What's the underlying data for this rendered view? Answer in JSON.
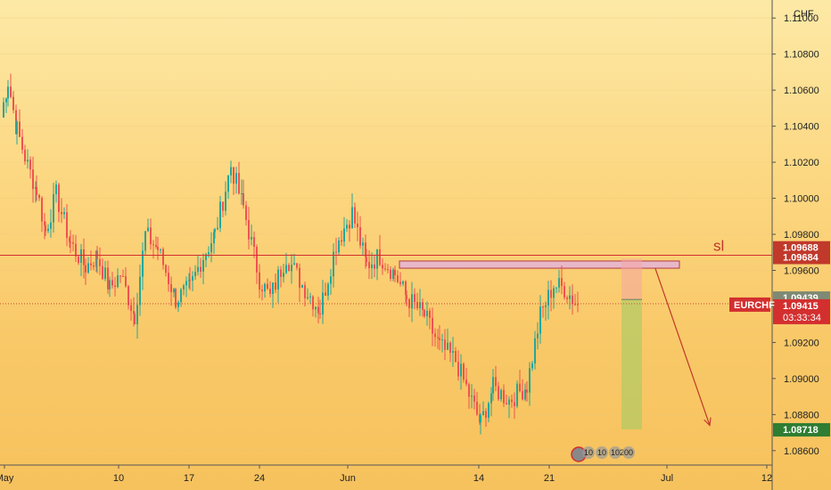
{
  "chart_data": {
    "type": "candlestick",
    "symbol": "EURCHF",
    "currency": "CHF",
    "y_axis": {
      "min": 1.0852,
      "max": 1.111,
      "ticks": [
        "1.11000",
        "1.10800",
        "1.10600",
        "1.10400",
        "1.10200",
        "1.10000",
        "1.09800",
        "1.09600",
        "1.09400",
        "1.09200",
        "1.09000",
        "1.08800",
        "1.08600"
      ]
    },
    "x_axis": {
      "ticks": [
        {
          "label": "May",
          "i": 5
        },
        {
          "label": "10",
          "i": 133
        },
        {
          "label": "17",
          "i": 212
        },
        {
          "label": "24",
          "i": 291
        },
        {
          "label": "Jun",
          "i": 390
        },
        {
          "label": "14",
          "i": 537
        },
        {
          "label": "21",
          "i": 616
        },
        {
          "label": "Jul",
          "i": 748
        },
        {
          "label": "12",
          "i": 860
        }
      ],
      "last_index": 870
    },
    "candles_waypoints": [
      [
        0,
        1.1045
      ],
      [
        8,
        1.1065
      ],
      [
        18,
        1.1038
      ],
      [
        30,
        1.1018
      ],
      [
        40,
        1.1005
      ],
      [
        50,
        1.0982
      ],
      [
        62,
        1.1002
      ],
      [
        78,
        1.0975
      ],
      [
        95,
        1.0962
      ],
      [
        108,
        1.0968
      ],
      [
        122,
        1.095
      ],
      [
        134,
        1.0958
      ],
      [
        150,
        1.0935
      ],
      [
        162,
        1.098
      ],
      [
        176,
        1.0972
      ],
      [
        196,
        1.0944
      ],
      [
        212,
        1.095
      ],
      [
        224,
        1.0965
      ],
      [
        240,
        1.098
      ],
      [
        258,
        1.1018
      ],
      [
        272,
        1.0995
      ],
      [
        290,
        1.0955
      ],
      [
        302,
        1.0945
      ],
      [
        320,
        1.0968
      ],
      [
        338,
        1.0952
      ],
      [
        358,
        1.0938
      ],
      [
        376,
        1.0975
      ],
      [
        394,
        1.0992
      ],
      [
        410,
        1.0963
      ],
      [
        425,
        1.0968
      ],
      [
        442,
        1.0958
      ],
      [
        455,
        1.0945
      ],
      [
        475,
        1.0935
      ],
      [
        492,
        1.0918
      ],
      [
        510,
        1.091
      ],
      [
        522,
        1.0895
      ],
      [
        538,
        1.0875
      ],
      [
        552,
        1.0895
      ],
      [
        570,
        1.0888
      ],
      [
        590,
        1.0896
      ],
      [
        605,
        1.0935
      ],
      [
        620,
        1.0952
      ],
      [
        632,
        1.095
      ],
      [
        648,
        1.094
      ]
    ],
    "price_tags": [
      {
        "label": "1.09688",
        "price": 1.09688,
        "color": "#c0392b"
      },
      {
        "label": "1.09684",
        "price": 1.09684,
        "color": "#c0392b"
      },
      {
        "label": "1.09439",
        "price": 1.09439,
        "color": "#7f8a74"
      },
      {
        "label": "1.09415",
        "price": 1.09415,
        "color": "#d32f2f"
      },
      {
        "label": "1.08718",
        "price": 1.08718,
        "color": "#2e7d32"
      }
    ],
    "current_symbol_tag": "EURCHF",
    "countdown": "03:33:34",
    "annotations": {
      "stop_loss_label": "sl",
      "stop_loss_price": 1.09684,
      "resistance_zone": {
        "top": 1.09652,
        "bottom": 1.09612,
        "i_start": 448,
        "i_end": 762
      },
      "position": {
        "i_start": 697,
        "i_end": 720,
        "entry": 1.09439,
        "stop": 1.09665,
        "target": 1.08718
      },
      "arrow": {
        "i_start": 735,
        "p_start": 1.0961,
        "i_end": 796,
        "p_end": 1.0874
      }
    },
    "event_labels": [
      "10",
      "10",
      "102",
      "00"
    ]
  },
  "colors": {
    "up": "#26a69a",
    "down": "#ef5350",
    "sl_line": "#d32f2f",
    "zone_fill": "#e8b8c8",
    "zone_stroke": "#b03a48",
    "target_fill": "#9ccc65",
    "stop_fill": "#f4a6a6",
    "arrow": "#c0392b"
  }
}
